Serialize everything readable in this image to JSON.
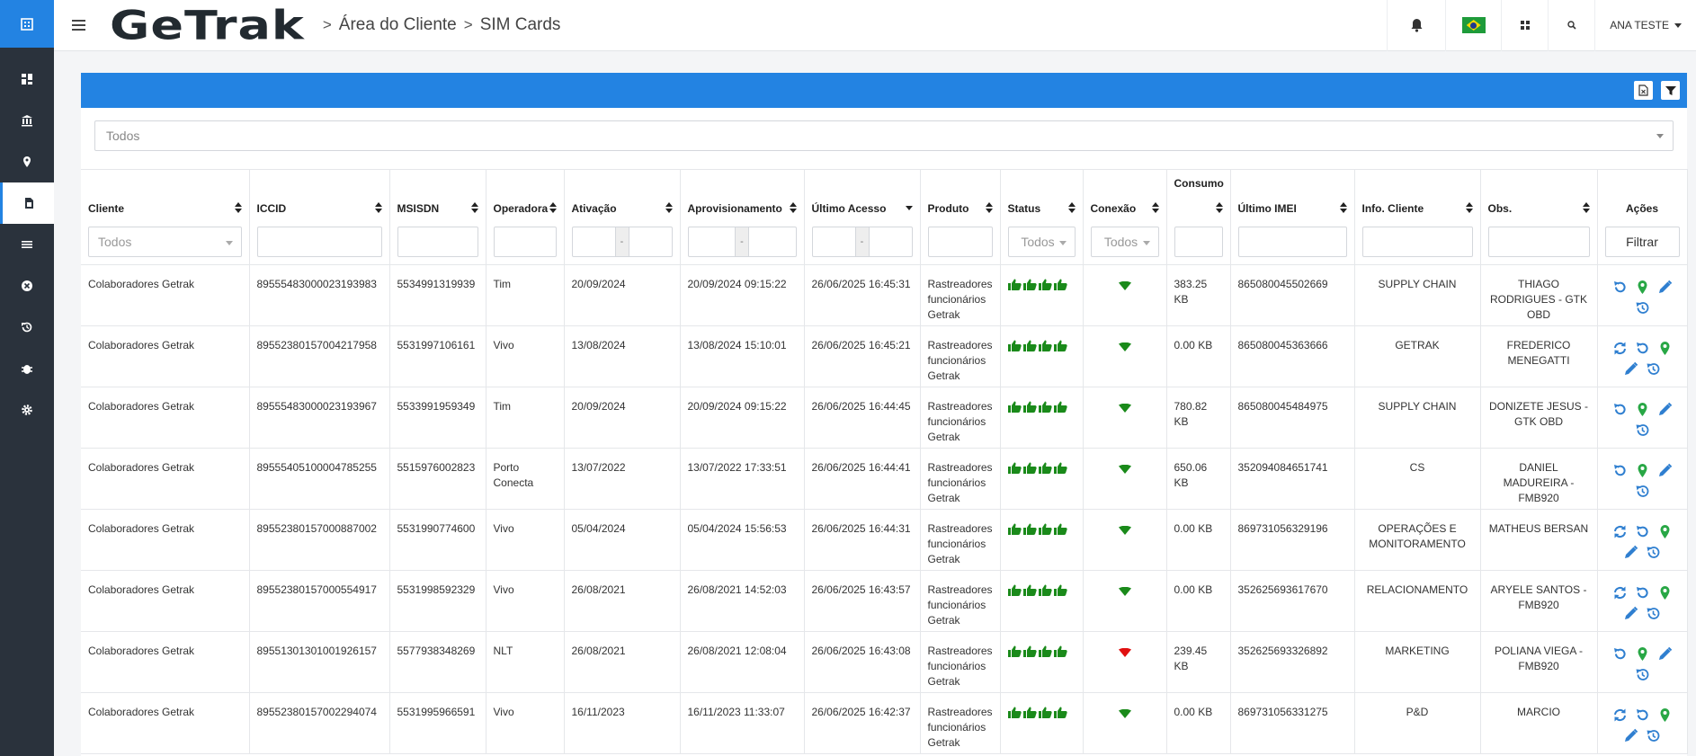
{
  "brand": {
    "name": "GeTrak"
  },
  "breadcrumb": [
    "Área do Cliente",
    "SIM Cards"
  ],
  "user": {
    "name": "ANA TESTE"
  },
  "colors": {
    "primary": "#2383e2",
    "sidebar": "#2a323c",
    "ok": "#1a8a1a",
    "bad": "#e01010",
    "action": "#2f7fd0"
  },
  "sidebar": {
    "items": [
      "dashboard-icon",
      "bank-icon",
      "map-pin-icon",
      "sim-card-icon",
      "list-icon",
      "close-circle-icon",
      "history-icon",
      "bug-icon",
      "gear-icon"
    ],
    "active": 3
  },
  "filters": {
    "top_select": "Todos",
    "cliente": "Todos",
    "status": "Todos",
    "conexao": "Todos",
    "range_sep": "-",
    "filter_button": "Filtrar"
  },
  "columns": [
    "Cliente",
    "ICCID",
    "MSISDN",
    "Operadora",
    "Ativação",
    "Aprovisionamento",
    "Último Acesso",
    "Produto",
    "Status",
    "Conexão",
    "Consumo",
    "Último IMEI",
    "Info. Cliente",
    "Obs.",
    "Ações"
  ],
  "rows": [
    {
      "cliente": "Colaboradores Getrak",
      "iccid": "89555483000023193983",
      "msisdn": "5534991319939",
      "operadora": "Tim",
      "ativacao": "20/09/2024",
      "aprovisionamento": "20/09/2024 09:15:22",
      "ultimo_acesso": "26/06/2025 16:45:31",
      "produto": "Rastreadores funcionários Getrak",
      "conexao": "ok",
      "consumo": "383.25 KB",
      "imei": "865080045502669",
      "info": "SUPPLY CHAIN",
      "obs": "THIAGO RODRIGUES - GTK OBD",
      "actions": [
        "reset",
        "location",
        "edit",
        "history"
      ]
    },
    {
      "cliente": "Colaboradores Getrak",
      "iccid": "89552380157004217958",
      "msisdn": "5531997106161",
      "operadora": "Vivo",
      "ativacao": "13/08/2024",
      "aprovisionamento": "13/08/2024 15:10:01",
      "ultimo_acesso": "26/06/2025 16:45:21",
      "produto": "Rastreadores funcionários Getrak",
      "conexao": "ok",
      "consumo": "0.00 KB",
      "imei": "865080045363666",
      "info": "GETRAK",
      "obs": "FREDERICO MENEGATTI",
      "actions": [
        "sync",
        "reset",
        "location",
        "edit",
        "history"
      ]
    },
    {
      "cliente": "Colaboradores Getrak",
      "iccid": "89555483000023193967",
      "msisdn": "5533991959349",
      "operadora": "Tim",
      "ativacao": "20/09/2024",
      "aprovisionamento": "20/09/2024 09:15:22",
      "ultimo_acesso": "26/06/2025 16:44:45",
      "produto": "Rastreadores funcionários Getrak",
      "conexao": "ok",
      "consumo": "780.82 KB",
      "imei": "865080045484975",
      "info": "SUPPLY CHAIN",
      "obs": "DONIZETE JESUS - GTK OBD",
      "actions": [
        "reset",
        "location",
        "edit",
        "history"
      ]
    },
    {
      "cliente": "Colaboradores Getrak",
      "iccid": "89555405100004785255",
      "msisdn": "5515976002823",
      "operadora": "Porto Conecta",
      "ativacao": "13/07/2022",
      "aprovisionamento": "13/07/2022 17:33:51",
      "ultimo_acesso": "26/06/2025 16:44:41",
      "produto": "Rastreadores funcionários Getrak",
      "conexao": "ok",
      "consumo": "650.06 KB",
      "imei": "352094084651741",
      "info": "CS",
      "obs": "DANIEL MADUREIRA - FMB920",
      "actions": [
        "reset",
        "location",
        "edit",
        "history"
      ]
    },
    {
      "cliente": "Colaboradores Getrak",
      "iccid": "89552380157000887002",
      "msisdn": "5531990774600",
      "operadora": "Vivo",
      "ativacao": "05/04/2024",
      "aprovisionamento": "05/04/2024 15:56:53",
      "ultimo_acesso": "26/06/2025 16:44:31",
      "produto": "Rastreadores funcionários Getrak",
      "conexao": "ok",
      "consumo": "0.00 KB",
      "imei": "869731056329196",
      "info": "OPERAÇÕES E MONITORAMENTO",
      "obs": "MATHEUS BERSAN",
      "actions": [
        "sync",
        "reset",
        "location",
        "edit",
        "history"
      ]
    },
    {
      "cliente": "Colaboradores Getrak",
      "iccid": "89552380157000554917",
      "msisdn": "5531998592329",
      "operadora": "Vivo",
      "ativacao": "26/08/2021",
      "aprovisionamento": "26/08/2021 14:52:03",
      "ultimo_acesso": "26/06/2025 16:43:57",
      "produto": "Rastreadores funcionários Getrak",
      "conexao": "ok",
      "consumo": "0.00 KB",
      "imei": "352625693617670",
      "info": "RELACIONAMENTO",
      "obs": "ARYELE SANTOS - FMB920",
      "actions": [
        "sync",
        "reset",
        "location",
        "edit",
        "history"
      ]
    },
    {
      "cliente": "Colaboradores Getrak",
      "iccid": "89551301301001926157",
      "msisdn": "5577938348269",
      "operadora": "NLT",
      "ativacao": "26/08/2021",
      "aprovisionamento": "26/08/2021 12:08:04",
      "ultimo_acesso": "26/06/2025 16:43:08",
      "produto": "Rastreadores funcionários Getrak",
      "conexao": "bad",
      "consumo": "239.45 KB",
      "imei": "352625693326892",
      "info": "MARKETING",
      "obs": "POLIANA VIEGA - FMB920",
      "actions": [
        "reset",
        "location",
        "edit",
        "history"
      ]
    },
    {
      "cliente": "Colaboradores Getrak",
      "iccid": "89552380157002294074",
      "msisdn": "5531995966591",
      "operadora": "Vivo",
      "ativacao": "16/11/2023",
      "aprovisionamento": "16/11/2023 11:33:07",
      "ultimo_acesso": "26/06/2025 16:42:37",
      "produto": "Rastreadores funcionários Getrak",
      "conexao": "ok",
      "consumo": "0.00 KB",
      "imei": "869731056331275",
      "info": "P&D",
      "obs": "MARCIO",
      "actions": [
        "sync",
        "reset",
        "location",
        "edit",
        "history"
      ]
    }
  ]
}
